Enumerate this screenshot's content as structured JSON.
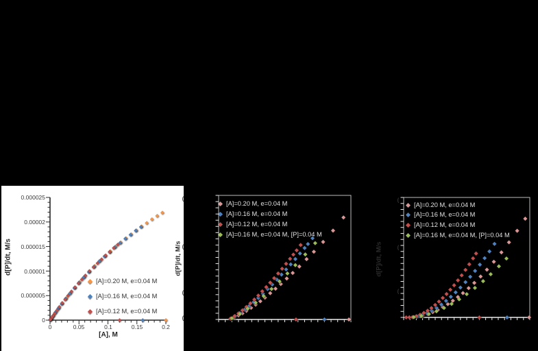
{
  "page": {
    "background": "#000000",
    "description_colors": {
      "slide_bg": "#000000",
      "left_chart_bg": "#ffffff"
    }
  },
  "chart_data": [
    {
      "id": "left-rate-vs-A",
      "type": "scatter",
      "title": "",
      "xlabel": "[A], M",
      "ylabel": "d[P]/dt, M/s",
      "xlim": [
        0,
        0.2
      ],
      "ylim": [
        0,
        2.5e-05
      ],
      "x_tick_labels": [
        "0",
        "0.05",
        "0.1",
        "0.15",
        "0.2"
      ],
      "y_tick_labels": [
        "0",
        "0.000005",
        "0.00001",
        "0.000015",
        "0.00002",
        "0.000025"
      ],
      "grid": "off",
      "background": "#ffffff",
      "legend_position": "inside lower-right",
      "y_values_scale": 1e-06,
      "note": "series y arrays are in units of 1e-6 M/s; each series ends with a single point on the x-axis (rate 0) at its initial [A]",
      "series": [
        {
          "name": "[A]=0.20 M, e=0.04 M",
          "color": "#F79646",
          "x": [
            0.194,
            0.185,
            0.176,
            0.167,
            0.158,
            0.149,
            0.14,
            0.131,
            0.122,
            0.113,
            0.104,
            0.095,
            0.086,
            0.077,
            0.068,
            0.059,
            0.051,
            0.043,
            0.035,
            0.028,
            0.021,
            0.015,
            0.01,
            0.006,
            0.003,
            0.0015,
            0.0007,
            0.2
          ],
          "y": [
            21.9,
            21.25,
            20.55,
            19.8,
            19.1,
            18.3,
            17.5,
            16.7,
            15.85,
            15.0,
            14.05,
            13.1,
            12.1,
            11.05,
            10.0,
            8.8,
            7.8,
            6.7,
            5.55,
            4.5,
            3.5,
            2.5,
            1.7,
            1.0,
            0.5,
            0.26,
            0.12,
            0
          ]
        },
        {
          "name": "[A]=0.16 M, e=0.04 M",
          "color": "#4F81BD",
          "x": [
            0.157,
            0.148,
            0.139,
            0.13,
            0.121,
            0.112,
            0.103,
            0.094,
            0.085,
            0.076,
            0.067,
            0.058,
            0.05,
            0.042,
            0.034,
            0.027,
            0.02,
            0.014,
            0.009,
            0.005,
            0.0025,
            0.0012,
            0.0005,
            0.16
          ],
          "y": [
            19.0,
            18.25,
            17.4,
            16.6,
            15.75,
            14.9,
            13.9,
            13.0,
            12.0,
            10.9,
            9.8,
            8.7,
            7.65,
            6.55,
            5.4,
            4.4,
            3.3,
            2.35,
            1.53,
            0.86,
            0.43,
            0.21,
            0.09,
            0
          ]
        },
        {
          "name": "[A]=0.12 M, e=0.04 M",
          "color": "#C0504D",
          "x": [
            0.117,
            0.11,
            0.103,
            0.096,
            0.089,
            0.082,
            0.075,
            0.068,
            0.061,
            0.055,
            0.049,
            0.043,
            0.037,
            0.031,
            0.026,
            0.021,
            0.016,
            0.012,
            0.008,
            0.005,
            0.003,
            0.0015,
            0.0006,
            0.12
          ],
          "y": [
            15.4,
            14.7,
            13.9,
            13.2,
            12.4,
            11.6,
            10.8,
            10.0,
            9.1,
            8.3,
            7.5,
            6.7,
            5.85,
            5.0,
            4.2,
            3.5,
            2.7,
            2.0,
            1.37,
            0.86,
            0.52,
            0.26,
            0.1,
            0
          ]
        }
      ]
    },
    {
      "id": "middle-rate-vs-unlabeled",
      "type": "scatter",
      "title": "",
      "xlabel": "",
      "ylabel": "d[P]/dt, M/s",
      "axis_tick_labels_visible": false,
      "y_tick_fragments": [
        "(",
        "(",
        "(",
        "("
      ],
      "coord_note": "axis numbers not visible; series stored as fractions of the plot area; each of pink/blue/dark-red series ends with one point on the x-axis",
      "background": "#000000",
      "axis_color": "#ededed",
      "legend_position": "inside upper-left",
      "series": [
        {
          "name": "[A]=0.20 M, e=0.04 M",
          "color": "#D99694",
          "x": [
            0.09,
            0.12,
            0.15,
            0.18,
            0.21,
            0.245,
            0.28,
            0.315,
            0.35,
            0.39,
            0.43,
            0.47,
            0.515,
            0.56,
            0.61,
            0.665,
            0.72,
            0.79,
            0.865,
            0.944,
            0.985
          ],
          "y": [
            0.005,
            0.017,
            0.032,
            0.049,
            0.069,
            0.094,
            0.119,
            0.147,
            0.176,
            0.212,
            0.248,
            0.286,
            0.33,
            0.375,
            0.427,
            0.486,
            0.546,
            0.625,
            0.716,
            0.822,
            0
          ]
        },
        {
          "name": "[A]=0.16 M, e=0.04 M",
          "color": "#4F81BD",
          "x": [
            0.09,
            0.125,
            0.16,
            0.195,
            0.23,
            0.265,
            0.3,
            0.335,
            0.37,
            0.405,
            0.44,
            0.475,
            0.51,
            0.545,
            0.58,
            0.615,
            0.65,
            0.675,
            0.71,
            0.8
          ],
          "y": [
            0.007,
            0.027,
            0.051,
            0.078,
            0.108,
            0.14,
            0.173,
            0.208,
            0.245,
            0.282,
            0.322,
            0.362,
            0.403,
            0.444,
            0.487,
            0.532,
            0.576,
            0.608,
            0.655,
            0
          ]
        },
        {
          "name": "[A]=0.12 M, e=0.04 M",
          "color": "#C0504D",
          "x": [
            0.09,
            0.12,
            0.15,
            0.18,
            0.21,
            0.24,
            0.27,
            0.3,
            0.33,
            0.36,
            0.39,
            0.42,
            0.45,
            0.48,
            0.51,
            0.54,
            0.565,
            0.59,
            0.62,
            0.585
          ],
          "y": [
            0.008,
            0.027,
            0.049,
            0.074,
            0.101,
            0.13,
            0.161,
            0.193,
            0.227,
            0.261,
            0.297,
            0.333,
            0.371,
            0.409,
            0.449,
            0.489,
            0.523,
            0.557,
            0.6,
            0
          ]
        },
        {
          "name": "[A]=0.16 M, e=0.04 M, [P]=0.04 M",
          "color": "#9BBB59",
          "x": [
            0.1,
            0.16,
            0.22,
            0.28,
            0.34,
            0.4,
            0.46,
            0.52,
            0.58,
            0.655,
            0.73
          ],
          "y": [
            0.01,
            0.044,
            0.087,
            0.135,
            0.189,
            0.246,
            0.307,
            0.371,
            0.438,
            0.524,
            0.615
          ]
        }
      ]
    },
    {
      "id": "right-rate-vs-unlabeled",
      "type": "scatter",
      "title": "",
      "xlabel": "",
      "ylabel": "d[P]/dt, M/s",
      "axis_tick_labels_visible": false,
      "y_tick_fragments": [
        "(",
        "(",
        "("
      ],
      "coord_note": "axis numbers not visible; series stored as fractions of the plot area; curves are more strongly upward-curving than middle chart",
      "background": "#000000",
      "axis_color": "#ededed",
      "legend_position": "inside upper-left",
      "series": [
        {
          "name": "[A]=0.20 M, e=0.04 M",
          "color": "#D99694",
          "x": [
            0.07,
            0.11,
            0.15,
            0.19,
            0.23,
            0.27,
            0.31,
            0.35,
            0.39,
            0.43,
            0.47,
            0.515,
            0.56,
            0.61,
            0.66,
            0.715,
            0.775,
            0.835,
            0.9,
            0.964,
            0.995
          ],
          "y": [
            0.001,
            0.006,
            0.015,
            0.028,
            0.044,
            0.063,
            0.086,
            0.111,
            0.139,
            0.17,
            0.203,
            0.244,
            0.288,
            0.341,
            0.398,
            0.464,
            0.542,
            0.626,
            0.722,
            0.823,
            0
          ]
        },
        {
          "name": "[A]=0.16 M, e=0.04 M",
          "color": "#4F81BD",
          "x": [
            0.07,
            0.108,
            0.146,
            0.184,
            0.222,
            0.26,
            0.298,
            0.336,
            0.374,
            0.412,
            0.45,
            0.49,
            0.528,
            0.566,
            0.604,
            0.642,
            0.68,
            0.72,
            0.82
          ],
          "y": [
            0.001,
            0.008,
            0.02,
            0.037,
            0.057,
            0.08,
            0.108,
            0.138,
            0.172,
            0.209,
            0.249,
            0.294,
            0.339,
            0.388,
            0.44,
            0.494,
            0.55,
            0.613,
            0
          ]
        },
        {
          "name": "[A]=0.12 M, e=0.04 M",
          "color": "#C0504D",
          "x": [
            0.02,
            0.045,
            0.07,
            0.1,
            0.13,
            0.16,
            0.19,
            0.22,
            0.25,
            0.28,
            0.31,
            0.34,
            0.37,
            0.4,
            0.43,
            0.46,
            0.49,
            0.52,
            0.55,
            0.574,
            0.6
          ],
          "y": [
            0.0,
            0.001,
            0.002,
            0.01,
            0.022,
            0.038,
            0.056,
            0.078,
            0.104,
            0.132,
            0.162,
            0.195,
            0.231,
            0.268,
            0.309,
            0.351,
            0.396,
            0.443,
            0.492,
            0.533,
            0
          ]
        },
        {
          "name": "[A]=0.16 M, e=0.04 M, [P]=0.04 M",
          "color": "#9BBB59",
          "x": [
            0.08,
            0.14,
            0.2,
            0.26,
            0.32,
            0.38,
            0.44,
            0.5,
            0.565,
            0.63,
            0.69,
            0.755,
            0.815
          ],
          "y": [
            0.002,
            0.012,
            0.028,
            0.051,
            0.079,
            0.113,
            0.151,
            0.194,
            0.246,
            0.302,
            0.36,
            0.426,
            0.491
          ]
        }
      ]
    }
  ]
}
